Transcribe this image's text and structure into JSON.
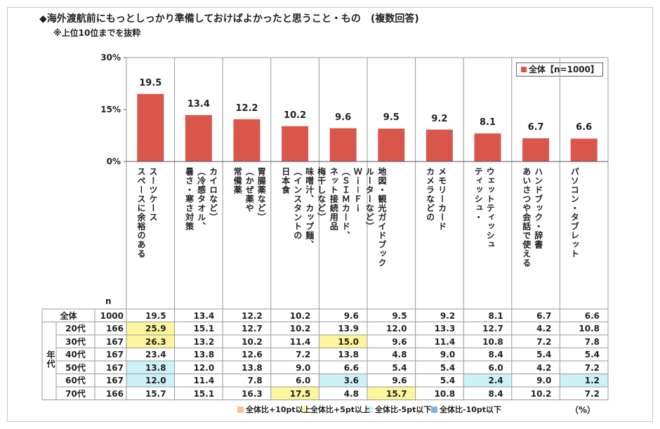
{
  "title": "◆海外渡航前にもっとしっかり準備しておけばよかったと思うこと・もの　(複数回答)",
  "subtitle": "※上位10位までを抜粋",
  "chart_data": {
    "type": "bar",
    "categories": [
      "スペースに余裕のある\nスーツケース",
      "暑さ・寒さ対策\n（冷感タオル、\nカイロなど）",
      "常備薬\n（かぜ薬や\n胃腸薬など）",
      "日本食\n（インスタントの\n味噌汁、カップ麺、\n梅干しなど）",
      "ネット接続用品\n（ＳＩＭカード、\nＷｉ－Ｆｉ\nルーターなど）",
      "地図・観光ガイドブック",
      "カメラなどの\nメモリーカード",
      "ティッシュ・\nウェットティッシュ",
      "あいさつや会話で使える\nハンドブック・辞書",
      "パソコン・タブレット"
    ],
    "series": [
      {
        "name": "全体【n=1000】",
        "color": "#d9564a",
        "values": [
          19.5,
          13.4,
          12.2,
          10.2,
          9.6,
          9.5,
          9.2,
          8.1,
          6.7,
          6.6
        ]
      }
    ],
    "ylim": [
      0,
      30
    ],
    "yticks": [
      {
        "value": 0,
        "label": "0%"
      },
      {
        "value": 15,
        "label": "15%"
      },
      {
        "value": 30,
        "label": "30%"
      }
    ],
    "legend": "top-right"
  },
  "table": {
    "n_label": "n",
    "group_label": "年代",
    "unit": "（%）",
    "highlight_legend": [
      {
        "label": "全体比+10pt以上",
        "color": "#f8c48c"
      },
      {
        "label": "全体比+5pt以上",
        "color": "#fdf69c"
      },
      {
        "label": "全体比-5pt以下",
        "color": "#cdf1f8"
      },
      {
        "label": "全体比-10pt以下",
        "color": "#7fb2e0"
      }
    ],
    "rows": [
      {
        "label": "全体",
        "n": "1000",
        "values": [
          "19.5",
          "13.4",
          "12.2",
          "10.2",
          "9.6",
          "9.5",
          "9.2",
          "8.1",
          "6.7",
          "6.6"
        ],
        "highlight": [
          null,
          null,
          null,
          null,
          null,
          null,
          null,
          null,
          null,
          null
        ]
      },
      {
        "label": "20代",
        "n": "166",
        "values": [
          "25.9",
          "15.1",
          "12.7",
          "10.2",
          "13.9",
          "12.0",
          "13.3",
          "12.7",
          "4.2",
          "10.8"
        ],
        "highlight": [
          1,
          null,
          null,
          null,
          null,
          null,
          null,
          null,
          null,
          null
        ]
      },
      {
        "label": "30代",
        "n": "167",
        "values": [
          "26.3",
          "13.2",
          "10.2",
          "11.4",
          "15.0",
          "9.6",
          "11.4",
          "10.8",
          "7.2",
          "7.8"
        ],
        "highlight": [
          1,
          null,
          null,
          null,
          1,
          null,
          null,
          null,
          null,
          null
        ]
      },
      {
        "label": "40代",
        "n": "167",
        "values": [
          "23.4",
          "13.8",
          "12.6",
          "7.2",
          "13.8",
          "4.8",
          "9.0",
          "8.4",
          "5.4",
          "5.4"
        ],
        "highlight": [
          null,
          null,
          null,
          null,
          null,
          null,
          null,
          null,
          null,
          null
        ]
      },
      {
        "label": "50代",
        "n": "167",
        "values": [
          "13.8",
          "12.0",
          "13.8",
          "9.0",
          "6.6",
          "5.4",
          "5.4",
          "6.0",
          "4.2",
          "7.2"
        ],
        "highlight": [
          2,
          null,
          null,
          null,
          null,
          null,
          null,
          null,
          null,
          null
        ]
      },
      {
        "label": "60代",
        "n": "167",
        "values": [
          "12.0",
          "11.4",
          "7.8",
          "6.0",
          "3.6",
          "9.6",
          "5.4",
          "2.4",
          "9.0",
          "1.2"
        ],
        "highlight": [
          2,
          null,
          null,
          null,
          2,
          null,
          null,
          2,
          null,
          2
        ]
      },
      {
        "label": "70代",
        "n": "166",
        "values": [
          "15.7",
          "15.1",
          "16.3",
          "17.5",
          "4.8",
          "15.7",
          "10.8",
          "8.4",
          "10.2",
          "7.2"
        ],
        "highlight": [
          null,
          null,
          null,
          1,
          null,
          1,
          null,
          null,
          null,
          null
        ]
      }
    ]
  }
}
